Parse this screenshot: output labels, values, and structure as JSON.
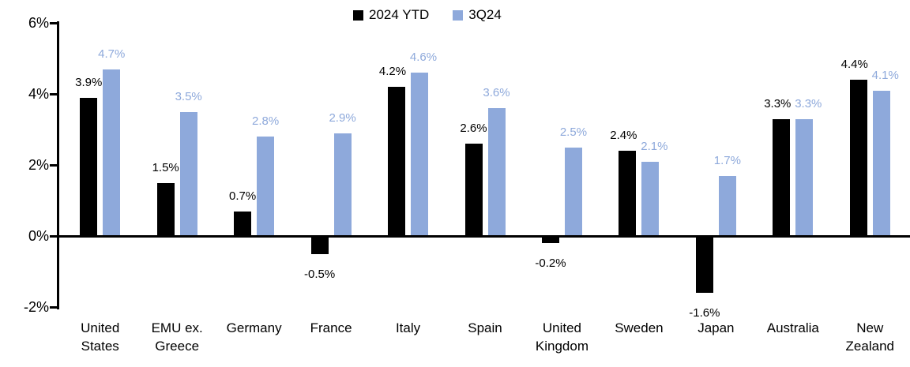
{
  "chart_data": {
    "type": "bar",
    "categories": [
      "United States",
      "EMU ex. Greece",
      "Germany",
      "France",
      "Italy",
      "Spain",
      "United Kingdom",
      "Sweden",
      "Japan",
      "Australia",
      "New Zealand"
    ],
    "series": [
      {
        "name": "2024 YTD",
        "color": "#000000",
        "label_color": "#000000",
        "values": [
          3.9,
          1.5,
          0.7,
          -0.5,
          4.2,
          2.6,
          -0.2,
          2.4,
          -1.6,
          3.3,
          4.4
        ]
      },
      {
        "name": "3Q24",
        "color": "#8EA9DB",
        "label_color": "#8EA9DB",
        "values": [
          4.7,
          3.5,
          2.8,
          2.9,
          4.6,
          3.6,
          2.5,
          2.1,
          1.7,
          3.3,
          4.1
        ]
      }
    ],
    "ylim": [
      -2,
      6
    ],
    "yticks": [
      6,
      4,
      2,
      0,
      -2
    ],
    "ytick_labels": [
      "6%",
      "4%",
      "2%",
      "0%",
      "-2%"
    ],
    "value_suffix": "%",
    "legend_position": "top-center",
    "grid": false,
    "background_color": "#FFFFFF",
    "axis_color": "#000000"
  }
}
